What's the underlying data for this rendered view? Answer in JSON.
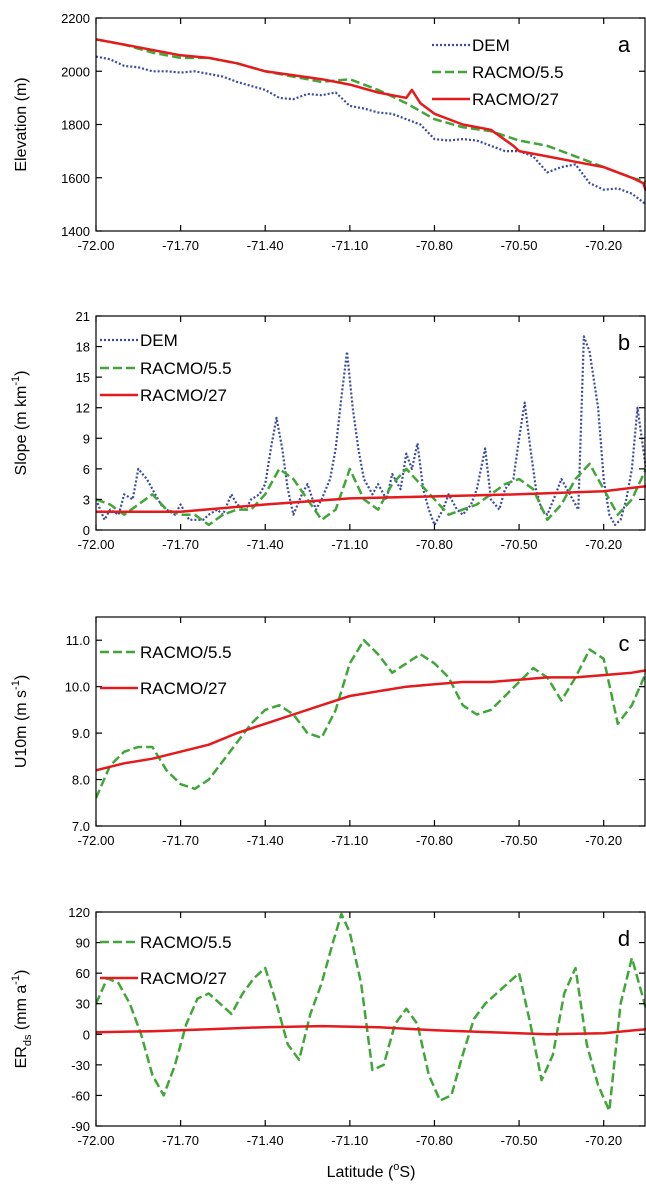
{
  "xlabel_main": "Latitude (",
  "xlabel_deg": "o",
  "xlabel_unit": "S)",
  "chart_data": [
    {
      "type": "line",
      "panel": "a",
      "ylabel": "Elevation (m)",
      "xlim": [
        -72.0,
        -70.05
      ],
      "ylim": [
        1400,
        2200
      ],
      "xticks": [
        "-72.00",
        "-71.70",
        "-71.40",
        "-71.10",
        "-70.80",
        "-70.50",
        "-70.20"
      ],
      "yticks": [
        "1400",
        "1600",
        "1800",
        "2000",
        "2200"
      ],
      "legend_position": "top-right",
      "series": [
        {
          "name": "DEM",
          "color": "#3b4aa0",
          "dash": "dotted",
          "x": [
            -72.0,
            -71.95,
            -71.9,
            -71.85,
            -71.8,
            -71.75,
            -71.7,
            -71.65,
            -71.6,
            -71.55,
            -71.5,
            -71.45,
            -71.4,
            -71.35,
            -71.3,
            -71.25,
            -71.2,
            -71.15,
            -71.1,
            -71.05,
            -71.0,
            -70.95,
            -70.9,
            -70.85,
            -70.8,
            -70.75,
            -70.7,
            -70.65,
            -70.6,
            -70.55,
            -70.5,
            -70.45,
            -70.4,
            -70.35,
            -70.3,
            -70.25,
            -70.2,
            -70.15,
            -70.1,
            -70.05
          ],
          "y": [
            2055,
            2045,
            2020,
            2015,
            2000,
            2000,
            1995,
            2000,
            1990,
            1980,
            1960,
            1945,
            1930,
            1900,
            1895,
            1915,
            1910,
            1920,
            1870,
            1860,
            1845,
            1840,
            1820,
            1800,
            1745,
            1740,
            1745,
            1740,
            1720,
            1700,
            1700,
            1680,
            1620,
            1640,
            1650,
            1580,
            1555,
            1560,
            1540,
            1500
          ]
        },
        {
          "name": "RACMO/5.5",
          "color": "#3fa637",
          "dash": "dashed",
          "x": [
            -72.0,
            -71.9,
            -71.8,
            -71.7,
            -71.6,
            -71.5,
            -71.4,
            -71.3,
            -71.2,
            -71.1,
            -71.0,
            -70.9,
            -70.8,
            -70.7,
            -70.6,
            -70.5,
            -70.4,
            -70.3,
            -70.2,
            -70.1,
            -70.05
          ],
          "y": [
            2120,
            2100,
            2070,
            2050,
            2050,
            2030,
            2000,
            1980,
            1960,
            1970,
            1930,
            1880,
            1820,
            1790,
            1775,
            1740,
            1720,
            1680,
            1640,
            1600,
            1585
          ]
        },
        {
          "name": "RACMO/27",
          "color": "#e41a1c",
          "dash": "solid",
          "x": [
            -72.0,
            -71.9,
            -71.8,
            -71.7,
            -71.6,
            -71.5,
            -71.4,
            -71.3,
            -71.2,
            -71.15,
            -71.1,
            -71.0,
            -70.95,
            -70.9,
            -70.88,
            -70.85,
            -70.8,
            -70.7,
            -70.6,
            -70.52,
            -70.5,
            -70.4,
            -70.3,
            -70.2,
            -70.1,
            -70.06,
            -70.05
          ],
          "y": [
            2120,
            2100,
            2080,
            2060,
            2050,
            2030,
            2000,
            1985,
            1970,
            1960,
            1950,
            1920,
            1910,
            1900,
            1930,
            1880,
            1840,
            1800,
            1780,
            1720,
            1700,
            1680,
            1660,
            1640,
            1600,
            1580,
            1550
          ]
        }
      ]
    },
    {
      "type": "line",
      "panel": "b",
      "ylabel": "Slope (m km",
      "ylabel_sup": "-1",
      "ylabel_end": ")",
      "xlim": [
        -72.0,
        -70.05
      ],
      "ylim": [
        0,
        21
      ],
      "xticks": [
        "-72.00",
        "-71.70",
        "-71.40",
        "-71.10",
        "-70.80",
        "-70.50",
        "-70.20"
      ],
      "yticks": [
        "0",
        "3",
        "6",
        "9",
        "12",
        "15",
        "18",
        "21"
      ],
      "legend_position": "top-left",
      "series": [
        {
          "name": "DEM",
          "color": "#3b4aa0",
          "dash": "dotted",
          "x": [
            -72.0,
            -71.97,
            -71.95,
            -71.92,
            -71.9,
            -71.87,
            -71.85,
            -71.82,
            -71.8,
            -71.77,
            -71.75,
            -71.72,
            -71.7,
            -71.67,
            -71.65,
            -71.62,
            -71.6,
            -71.57,
            -71.55,
            -71.52,
            -71.5,
            -71.47,
            -71.45,
            -71.42,
            -71.4,
            -71.38,
            -71.36,
            -71.34,
            -71.32,
            -71.3,
            -71.27,
            -71.25,
            -71.22,
            -71.2,
            -71.17,
            -71.15,
            -71.13,
            -71.11,
            -71.09,
            -71.07,
            -71.05,
            -71.02,
            -71.0,
            -70.97,
            -70.95,
            -70.92,
            -70.9,
            -70.88,
            -70.86,
            -70.84,
            -70.82,
            -70.8,
            -70.77,
            -70.75,
            -70.72,
            -70.7,
            -70.67,
            -70.65,
            -70.62,
            -70.6,
            -70.57,
            -70.55,
            -70.52,
            -70.5,
            -70.48,
            -70.46,
            -70.44,
            -70.42,
            -70.4,
            -70.37,
            -70.35,
            -70.33,
            -70.31,
            -70.29,
            -70.27,
            -70.25,
            -70.22,
            -70.2,
            -70.18,
            -70.16,
            -70.14,
            -70.12,
            -70.1,
            -70.08,
            -70.05
          ],
          "y": [
            3,
            1,
            2,
            1.5,
            3.5,
            3,
            6,
            5,
            4,
            2.5,
            2,
            1.5,
            2.5,
            1,
            1,
            1,
            1.5,
            2,
            1.5,
            3.5,
            2.5,
            2,
            3,
            3.5,
            4.5,
            8,
            11,
            8,
            4,
            1.5,
            3.5,
            4.5,
            2,
            3,
            5,
            8,
            13,
            17.5,
            12,
            8,
            5,
            3.5,
            4.5,
            3,
            5.5,
            4,
            7.5,
            6,
            8.5,
            4,
            2,
            0.5,
            2,
            3.5,
            2,
            1.5,
            2.5,
            4,
            8,
            3,
            2,
            4,
            5,
            9,
            12.5,
            8,
            4,
            2,
            1.5,
            3.5,
            5,
            4,
            3,
            2,
            19,
            17.5,
            12,
            5,
            1.5,
            0.5,
            1,
            3,
            6,
            12,
            6
          ]
        },
        {
          "name": "RACMO/5.5",
          "color": "#3fa637",
          "dash": "dashed",
          "x": [
            -72.0,
            -71.95,
            -71.9,
            -71.85,
            -71.8,
            -71.75,
            -71.7,
            -71.65,
            -71.6,
            -71.55,
            -71.5,
            -71.45,
            -71.4,
            -71.35,
            -71.3,
            -71.25,
            -71.2,
            -71.15,
            -71.1,
            -71.05,
            -71.0,
            -70.95,
            -70.9,
            -70.85,
            -70.8,
            -70.75,
            -70.7,
            -70.65,
            -70.6,
            -70.55,
            -70.5,
            -70.45,
            -70.4,
            -70.35,
            -70.3,
            -70.25,
            -70.2,
            -70.15,
            -70.1,
            -70.05
          ],
          "y": [
            3,
            2.5,
            1.5,
            2.5,
            3.5,
            2,
            1.5,
            1.5,
            0.5,
            1.5,
            2,
            2,
            3.5,
            6,
            5,
            3,
            1,
            2,
            6,
            3,
            2,
            4.5,
            6,
            4.5,
            3,
            1.5,
            2,
            2.5,
            3.5,
            4.5,
            5,
            4,
            1,
            2.5,
            5,
            6.5,
            4,
            1.5,
            3,
            6
          ]
        },
        {
          "name": "RACMO/27",
          "color": "#e41a1c",
          "dash": "solid",
          "x": [
            -72.0,
            -71.7,
            -71.4,
            -71.1,
            -70.8,
            -70.5,
            -70.2,
            -70.05
          ],
          "y": [
            1.8,
            1.8,
            2.5,
            3.1,
            3.3,
            3.5,
            3.8,
            4.3
          ]
        }
      ]
    },
    {
      "type": "line",
      "panel": "c",
      "ylabel": "U10m (m s",
      "ylabel_sup": "-1",
      "ylabel_end": ")",
      "xlim": [
        -72.0,
        -70.05
      ],
      "ylim": [
        7.0,
        11.5
      ],
      "xticks": [
        "-72.00",
        "-71.70",
        "-71.40",
        "-71.10",
        "-70.80",
        "-70.50",
        "-70.20"
      ],
      "yticks": [
        "7.0",
        "8.0",
        "9.0",
        "10.0",
        "11.0"
      ],
      "legend_position": "top-left",
      "series": [
        {
          "name": "RACMO/5.5",
          "color": "#3fa637",
          "dash": "dashed",
          "x": [
            -72.0,
            -71.95,
            -71.9,
            -71.85,
            -71.8,
            -71.75,
            -71.7,
            -71.65,
            -71.6,
            -71.55,
            -71.5,
            -71.45,
            -71.4,
            -71.35,
            -71.3,
            -71.25,
            -71.2,
            -71.15,
            -71.1,
            -71.05,
            -71.0,
            -70.95,
            -70.9,
            -70.85,
            -70.8,
            -70.75,
            -70.7,
            -70.65,
            -70.6,
            -70.55,
            -70.5,
            -70.45,
            -70.4,
            -70.35,
            -70.3,
            -70.25,
            -70.2,
            -70.15,
            -70.1,
            -70.05
          ],
          "y": [
            7.6,
            8.3,
            8.6,
            8.7,
            8.7,
            8.2,
            7.9,
            7.8,
            8.0,
            8.4,
            8.8,
            9.2,
            9.5,
            9.6,
            9.4,
            9.0,
            8.9,
            9.5,
            10.5,
            11.0,
            10.7,
            10.3,
            10.5,
            10.7,
            10.5,
            10.2,
            9.6,
            9.4,
            9.5,
            9.8,
            10.1,
            10.4,
            10.2,
            9.7,
            10.2,
            10.8,
            10.6,
            9.2,
            9.6,
            10.3
          ]
        },
        {
          "name": "RACMO/27",
          "color": "#e41a1c",
          "dash": "solid",
          "x": [
            -72.0,
            -71.9,
            -71.8,
            -71.7,
            -71.6,
            -71.5,
            -71.4,
            -71.3,
            -71.2,
            -71.1,
            -71.0,
            -70.9,
            -70.8,
            -70.7,
            -70.6,
            -70.5,
            -70.4,
            -70.3,
            -70.2,
            -70.1,
            -70.05
          ],
          "y": [
            8.2,
            8.35,
            8.45,
            8.6,
            8.75,
            9.0,
            9.2,
            9.4,
            9.6,
            9.8,
            9.9,
            10.0,
            10.05,
            10.1,
            10.1,
            10.15,
            10.2,
            10.2,
            10.25,
            10.3,
            10.35
          ]
        }
      ]
    },
    {
      "type": "line",
      "panel": "d",
      "ylabel": "ER",
      "ylabel_sub": "ds",
      "ylabel_unit": " (mm a",
      "ylabel_sup": "-1",
      "ylabel_end": ")",
      "xlim": [
        -72.0,
        -70.05
      ],
      "ylim": [
        -90,
        120
      ],
      "xticks": [
        "-72.00",
        "-71.70",
        "-71.40",
        "-71.10",
        "-70.80",
        "-70.50",
        "-70.20"
      ],
      "yticks": [
        "-90",
        "-60",
        "-30",
        "0",
        "30",
        "60",
        "90",
        "120"
      ],
      "legend_position": "top-left",
      "series": [
        {
          "name": "RACMO/5.5",
          "color": "#3fa637",
          "dash": "dashed",
          "x": [
            -72.0,
            -71.96,
            -71.92,
            -71.88,
            -71.84,
            -71.8,
            -71.76,
            -71.72,
            -71.68,
            -71.64,
            -71.6,
            -71.56,
            -71.52,
            -71.48,
            -71.44,
            -71.4,
            -71.36,
            -71.32,
            -71.28,
            -71.24,
            -71.2,
            -71.16,
            -71.13,
            -71.1,
            -71.06,
            -71.02,
            -70.98,
            -70.94,
            -70.9,
            -70.86,
            -70.82,
            -70.78,
            -70.74,
            -70.7,
            -70.66,
            -70.62,
            -70.58,
            -70.54,
            -70.5,
            -70.46,
            -70.42,
            -70.38,
            -70.34,
            -70.3,
            -70.26,
            -70.22,
            -70.18,
            -70.14,
            -70.1,
            -70.05
          ],
          "y": [
            30,
            55,
            50,
            30,
            0,
            -40,
            -60,
            -30,
            10,
            35,
            40,
            30,
            20,
            40,
            55,
            65,
            30,
            -10,
            -25,
            20,
            50,
            90,
            118,
            100,
            50,
            -35,
            -30,
            10,
            25,
            10,
            -40,
            -65,
            -60,
            -20,
            15,
            30,
            40,
            50,
            60,
            10,
            -45,
            -20,
            40,
            65,
            -10,
            -50,
            -75,
            30,
            75,
            25
          ]
        },
        {
          "name": "RACMO/27",
          "color": "#e41a1c",
          "dash": "solid",
          "x": [
            -72.0,
            -71.8,
            -71.6,
            -71.4,
            -71.2,
            -71.0,
            -70.8,
            -70.6,
            -70.4,
            -70.2,
            -70.05
          ],
          "y": [
            2,
            3,
            5,
            7,
            8,
            7,
            4,
            2,
            0,
            1,
            5
          ]
        }
      ]
    }
  ]
}
